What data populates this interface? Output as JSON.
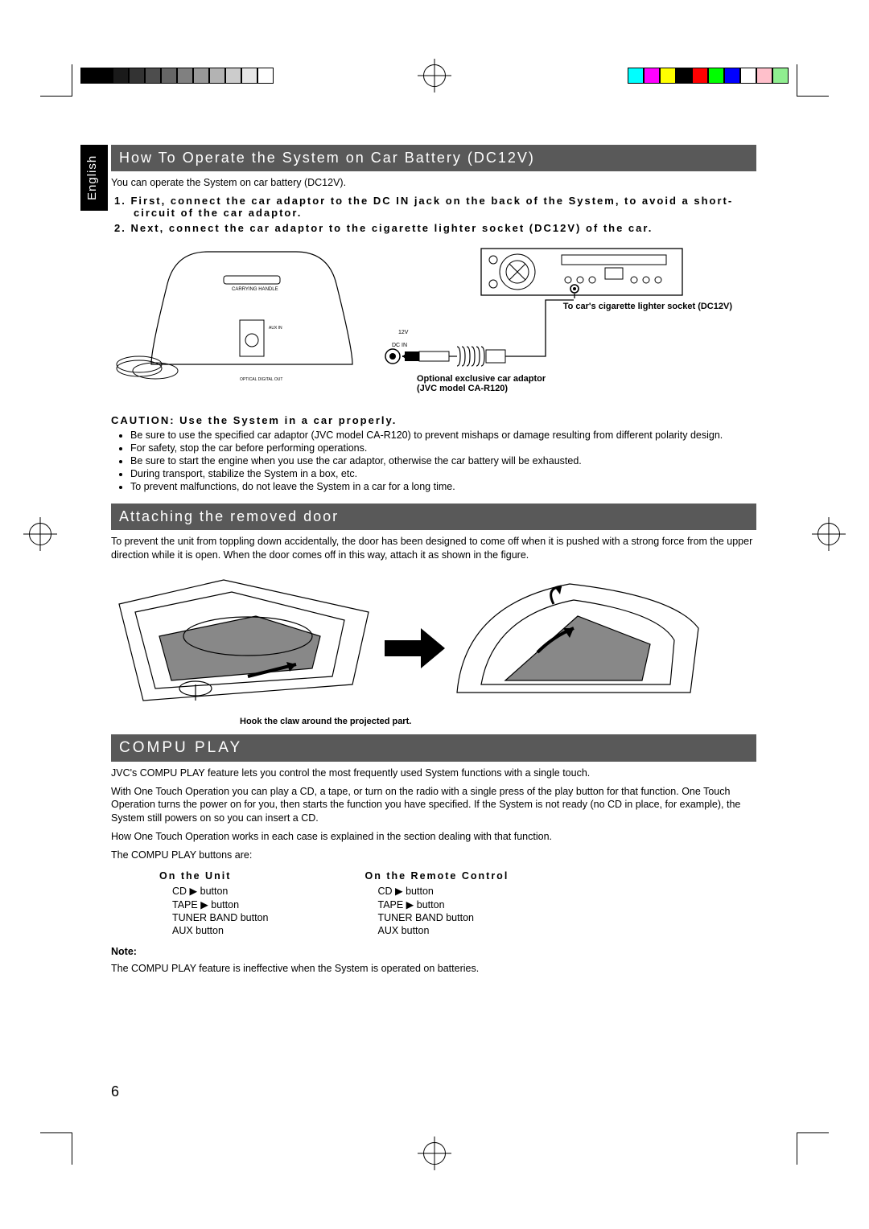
{
  "print_marks": {
    "grayscale_bar": [
      "#000000",
      "#000000",
      "#1a1a1a",
      "#333333",
      "#4d4d4d",
      "#666666",
      "#808080",
      "#999999",
      "#b3b3b3",
      "#cccccc",
      "#e6e6e6",
      "#ffffff"
    ],
    "color_bar": [
      "#00ffff",
      "#ff00ff",
      "#ffff00",
      "#000000",
      "#ff0000",
      "#00ff00",
      "#0000ff",
      "#ffffff",
      "#ffc0cb",
      "#90ee90"
    ]
  },
  "language_tab": "English",
  "page_number": "6",
  "section1": {
    "title": "How To Operate the System on Car Battery (DC12V)",
    "intro": "You can operate the System on car battery (DC12V).",
    "steps": [
      "1. First, connect the car adaptor to the DC IN jack on the back of the System, to avoid a short-circuit of the car adaptor.",
      "2. Next, connect the car adaptor to the cigarette lighter socket (DC12V) of the car."
    ],
    "diagram": {
      "labels": {
        "carrying_handle": "CARRYING HANDLE",
        "dc_in": "DC IN",
        "voltage": "12V",
        "aux_in": "AUX IN",
        "optical_out": "OPTICAL DIGITAL OUT",
        "socket_label": "To car's cigarette lighter socket (DC12V)",
        "adaptor_label": "Optional exclusive car adaptor",
        "adaptor_model": "(JVC model CA-R120)"
      }
    },
    "caution_title": "CAUTION: Use the System in a car properly.",
    "caution_items": [
      "Be sure to use the specified car adaptor (JVC model CA-R120) to prevent mishaps or damage resulting from different polarity design.",
      "For safety, stop the car before performing operations.",
      "Be sure to start the engine when you use the car adaptor, otherwise the car battery will be exhausted.",
      "During transport, stabilize the System in a box, etc.",
      "To prevent malfunctions, do not leave the System in a car for a long time."
    ]
  },
  "section2": {
    "title": "Attaching the removed door",
    "body": "To prevent the unit from toppling down accidentally, the door has been designed to come off when it is pushed with a strong force from the upper direction while it is open. When the door comes off in this way, attach it as shown in the figure.",
    "diagram_caption": "Hook the claw around the projected part."
  },
  "section3": {
    "title": "COMPU PLAY",
    "para1": "JVC's COMPU PLAY feature lets you control the most frequently used System functions with a single touch.",
    "para2": "With One Touch Operation you can play a CD, a tape, or turn on the radio with a single press of the play button for that function. One Touch Operation turns the power on for you, then starts the function you have specified. If the System is not ready (no CD in place, for example), the System still powers on so you can insert a CD.",
    "para3": "How One Touch Operation works in each case is explained in the section dealing with that function.",
    "para4": "The COMPU PLAY buttons are:",
    "columns": {
      "unit_head": "On the Unit",
      "remote_head": "On the Remote Control",
      "buttons": [
        "CD ▶ button",
        "TAPE ▶ button",
        "TUNER BAND button",
        "AUX button"
      ]
    },
    "note_head": "Note:",
    "note_body": "The COMPU PLAY feature is ineffective when the System is operated on batteries."
  }
}
